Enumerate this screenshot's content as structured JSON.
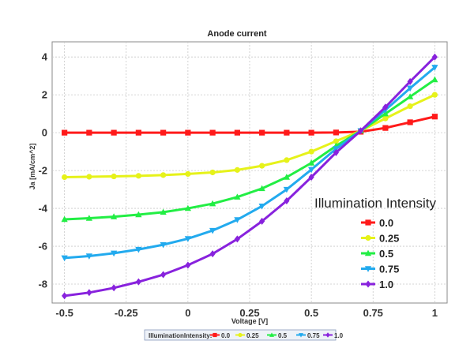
{
  "chart_data": {
    "type": "line",
    "title": "Anode current",
    "xlabel": "Voltage [V]",
    "ylabel": "Ja [mA/cm^2]",
    "xlim": [
      -0.55,
      1.05
    ],
    "ylim": [
      -9,
      4.8
    ],
    "xticks": [
      -0.5,
      -0.25,
      0,
      0.25,
      0.5,
      0.75,
      1
    ],
    "xtick_labels": [
      "-0.5",
      "-0.25",
      "0",
      "0.25",
      "0.5",
      "0.75",
      "1"
    ],
    "yticks": [
      -8,
      -6,
      -4,
      -2,
      0,
      2,
      4
    ],
    "ytick_labels": [
      "-8",
      "-6",
      "-4",
      "-2",
      "0",
      "2",
      "4"
    ],
    "grid": true,
    "legend_title": "Illumination Intensity",
    "legend_position": "right",
    "bottom_legend_title": "IlluminationIntensity:",
    "x": [
      -0.5,
      -0.4,
      -0.3,
      -0.2,
      -0.1,
      0,
      0.1,
      0.2,
      0.3,
      0.4,
      0.5,
      0.6,
      0.7,
      0.8,
      0.9,
      1.0
    ],
    "series": [
      {
        "name": "0.0",
        "color": "#ff1a1a",
        "marker": "square",
        "values": [
          0,
          0,
          0,
          0,
          0,
          0,
          0,
          0,
          0,
          0,
          0,
          0.01,
          0.05,
          0.25,
          0.55,
          0.85
        ]
      },
      {
        "name": "0.25",
        "color": "#e6f21a",
        "marker": "circle",
        "values": [
          -2.35,
          -2.33,
          -2.31,
          -2.28,
          -2.24,
          -2.18,
          -2.1,
          -1.97,
          -1.75,
          -1.45,
          -1.0,
          -0.45,
          0.1,
          0.75,
          1.4,
          2.0
        ]
      },
      {
        "name": "0.5",
        "color": "#22ee44",
        "marker": "triangle-up",
        "values": [
          -4.58,
          -4.52,
          -4.44,
          -4.33,
          -4.2,
          -4.0,
          -3.75,
          -3.4,
          -2.95,
          -2.35,
          -1.6,
          -0.7,
          0.1,
          1.0,
          1.9,
          2.8
        ]
      },
      {
        "name": "0.75",
        "color": "#22aaee",
        "marker": "triangle-down",
        "values": [
          -6.62,
          -6.52,
          -6.37,
          -6.17,
          -5.92,
          -5.6,
          -5.17,
          -4.6,
          -3.88,
          -3.0,
          -1.95,
          -0.85,
          0.1,
          1.2,
          2.35,
          3.45
        ]
      },
      {
        "name": "1.0",
        "color": "#8822dd",
        "marker": "diamond",
        "values": [
          -8.62,
          -8.45,
          -8.2,
          -7.88,
          -7.5,
          -7.0,
          -6.4,
          -5.62,
          -4.68,
          -3.6,
          -2.35,
          -1.05,
          0.1,
          1.35,
          2.7,
          4.0
        ]
      }
    ]
  }
}
